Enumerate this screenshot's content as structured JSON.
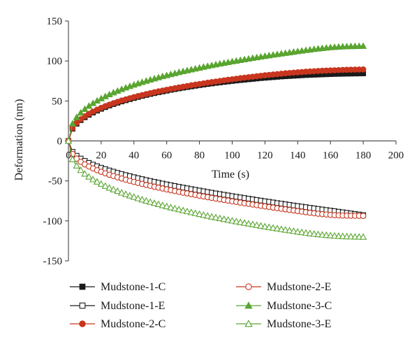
{
  "chart_data": {
    "type": "line",
    "xlabel": "Time (s)",
    "ylabel": "Deformation (nm)",
    "xlim": [
      0,
      200
    ],
    "ylim": [
      -150,
      150
    ],
    "x_ticks": [
      "0",
      "20",
      "40",
      "60",
      "80",
      "100",
      "120",
      "140",
      "160",
      "180",
      "200"
    ],
    "y_ticks": [
      "150",
      "100",
      "50",
      "0",
      "-50",
      "-100",
      "-150"
    ],
    "x_tick_values": [
      0,
      20,
      40,
      60,
      80,
      100,
      120,
      140,
      160,
      180,
      200
    ],
    "y_tick_values": [
      150,
      100,
      50,
      0,
      -50,
      -100,
      -150
    ],
    "x_axis_position": "y=0",
    "grid": false,
    "legend_position": "bottom",
    "x": [
      0,
      2.5,
      5,
      7.5,
      10,
      12.5,
      15,
      17.5,
      20,
      22.5,
      25,
      27.5,
      30,
      32.5,
      35,
      37.5,
      40,
      42.5,
      45,
      47.5,
      50,
      52.5,
      55,
      57.5,
      60,
      62.5,
      65,
      67.5,
      70,
      72.5,
      75,
      77.5,
      80,
      82.5,
      85,
      87.5,
      90,
      92.5,
      95,
      97.5,
      100,
      102.5,
      105,
      107.5,
      110,
      112.5,
      115,
      117.5,
      120,
      122.5,
      125,
      127.5,
      130,
      132.5,
      135,
      137.5,
      140,
      142.5,
      145,
      147.5,
      150,
      152.5,
      155,
      157.5,
      160,
      162.5,
      165,
      167.5,
      170,
      172.5,
      175,
      177.5,
      180
    ],
    "series": [
      {
        "name": "Mudstone-1-C",
        "color": "#1a1a1a",
        "marker": "square",
        "filled": true,
        "values": [
          0,
          15.2,
          21.4,
          25.9,
          29.5,
          32.6,
          35.4,
          37.8,
          40.1,
          42.2,
          44.2,
          46.0,
          47.7,
          49.3,
          50.8,
          52.2,
          53.6,
          54.9,
          56.2,
          57.4,
          58.6,
          59.7,
          60.8,
          61.8,
          62.8,
          63.8,
          64.7,
          65.6,
          66.5,
          67.3,
          68.1,
          68.9,
          69.7,
          70.4,
          71.1,
          71.8,
          72.5,
          73.1,
          73.7,
          74.3,
          74.9,
          75.5,
          76.0,
          76.5,
          77.0,
          77.5,
          78.0,
          78.5,
          78.9,
          79.3,
          79.7,
          80.1,
          80.5,
          80.8,
          81.1,
          81.4,
          81.7,
          82.0,
          82.3,
          82.5,
          82.7,
          82.9,
          83.1,
          83.3,
          83.5,
          83.7,
          83.8,
          83.9,
          84.0,
          84.1,
          84.2,
          84.3,
          84.4
        ]
      },
      {
        "name": "Mudstone-1-E",
        "color": "#1a1a1a",
        "marker": "square",
        "filled": false,
        "values": [
          0,
          -13.5,
          -18.5,
          -22.0,
          -24.9,
          -27.4,
          -29.6,
          -31.6,
          -33.5,
          -35.2,
          -36.9,
          -38.4,
          -39.9,
          -41.3,
          -42.7,
          -44.0,
          -45.3,
          -46.5,
          -47.7,
          -48.9,
          -50.0,
          -51.1,
          -52.2,
          -53.3,
          -54.3,
          -55.3,
          -56.3,
          -57.3,
          -58.3,
          -59.2,
          -60.2,
          -61.1,
          -62.0,
          -62.9,
          -63.8,
          -64.7,
          -65.6,
          -66.4,
          -67.3,
          -68.1,
          -69.0,
          -69.8,
          -70.6,
          -71.4,
          -72.2,
          -73.0,
          -73.8,
          -74.6,
          -75.4,
          -76.1,
          -76.9,
          -77.7,
          -78.4,
          -79.2,
          -79.9,
          -80.7,
          -81.4,
          -82.1,
          -82.8,
          -83.6,
          -84.3,
          -85.0,
          -85.7,
          -86.4,
          -87.1,
          -87.8,
          -88.5,
          -89.2,
          -89.9,
          -90.6,
          -91.3,
          -92.0,
          -92.7
        ]
      },
      {
        "name": "Mudstone-2-C",
        "color": "#c8361f",
        "marker": "circle",
        "filled": true,
        "values": [
          0,
          16.0,
          22.5,
          27.1,
          30.8,
          33.9,
          36.7,
          39.1,
          41.4,
          43.5,
          45.4,
          47.2,
          48.9,
          50.5,
          52.0,
          53.4,
          54.8,
          56.1,
          57.3,
          58.6,
          59.7,
          60.9,
          62.0,
          63.0,
          64.0,
          65.0,
          66.0,
          66.9,
          67.8,
          68.7,
          69.6,
          70.4,
          71.2,
          72.0,
          72.8,
          73.6,
          74.3,
          75.0,
          75.8,
          76.5,
          77.1,
          77.8,
          78.5,
          79.1,
          79.7,
          80.3,
          80.9,
          81.5,
          82.1,
          82.6,
          83.1,
          83.6,
          84.1,
          84.6,
          85.0,
          85.4,
          85.8,
          86.2,
          86.6,
          86.9,
          87.2,
          87.5,
          87.8,
          88.0,
          88.2,
          88.4,
          88.6,
          88.8,
          89.0,
          89.1,
          89.2,
          89.3,
          89.4
        ]
      },
      {
        "name": "Mudstone-2-E",
        "color": "#c8361f",
        "marker": "circle",
        "filled": false,
        "values": [
          0,
          -16.3,
          -22.1,
          -26.1,
          -29.3,
          -32.0,
          -34.4,
          -36.6,
          -38.6,
          -40.5,
          -42.3,
          -43.9,
          -45.5,
          -47.0,
          -48.5,
          -49.9,
          -51.2,
          -52.5,
          -53.7,
          -55.0,
          -56.1,
          -57.3,
          -58.4,
          -59.5,
          -60.6,
          -61.6,
          -62.7,
          -63.7,
          -64.7,
          -65.6,
          -66.6,
          -67.5,
          -68.5,
          -69.4,
          -70.3,
          -71.2,
          -72.1,
          -72.9,
          -73.8,
          -74.6,
          -75.5,
          -76.3,
          -77.1,
          -77.9,
          -78.7,
          -79.5,
          -80.3,
          -81.1,
          -81.8,
          -82.6,
          -83.3,
          -84.1,
          -84.8,
          -85.5,
          -86.3,
          -87.0,
          -87.7,
          -88.4,
          -89.1,
          -89.8,
          -90.4,
          -91.0,
          -91.5,
          -92.0,
          -92.4,
          -92.8,
          -93.1,
          -93.3,
          -93.4,
          -93.5,
          -93.5,
          -93.6,
          -93.7
        ]
      },
      {
        "name": "Mudstone-3-C",
        "color": "#5aa531",
        "marker": "triangle",
        "filled": true,
        "values": [
          0,
          21.5,
          29.5,
          35.2,
          39.8,
          43.7,
          47.1,
          50.2,
          53.0,
          55.6,
          58.1,
          60.4,
          62.5,
          64.6,
          66.5,
          68.4,
          70.1,
          71.8,
          73.4,
          75.0,
          76.5,
          77.9,
          79.3,
          80.7,
          82.0,
          83.3,
          84.5,
          85.8,
          87.0,
          88.1,
          89.2,
          90.3,
          91.4,
          92.5,
          93.5,
          94.5,
          95.5,
          96.5,
          97.4,
          98.3,
          99.3,
          100.1,
          101.0,
          101.9,
          102.7,
          103.6,
          104.4,
          105.2,
          106.0,
          106.8,
          107.6,
          108.3,
          109.1,
          109.8,
          110.5,
          111.3,
          112.0,
          112.7,
          113.4,
          114.0,
          114.7,
          115.3,
          115.9,
          116.4,
          116.9,
          117.3,
          117.6,
          117.9,
          118.1,
          118.3,
          118.4,
          118.5,
          118.6
        ]
      },
      {
        "name": "Mudstone-3-E",
        "color": "#5aa531",
        "marker": "triangle",
        "filled": false,
        "values": [
          0,
          -23.0,
          -31.0,
          -36.6,
          -41.1,
          -44.9,
          -48.2,
          -51.1,
          -53.8,
          -56.3,
          -58.6,
          -60.8,
          -62.8,
          -64.8,
          -66.6,
          -68.4,
          -70.1,
          -71.8,
          -73.4,
          -74.9,
          -76.4,
          -77.8,
          -79.2,
          -80.6,
          -81.9,
          -83.2,
          -84.5,
          -85.7,
          -86.9,
          -88.1,
          -89.3,
          -90.4,
          -91.5,
          -92.6,
          -93.7,
          -94.8,
          -95.8,
          -96.8,
          -97.8,
          -98.8,
          -99.8,
          -100.7,
          -101.7,
          -102.6,
          -103.5,
          -104.4,
          -105.3,
          -106.2,
          -107.1,
          -107.9,
          -108.8,
          -109.6,
          -110.4,
          -111.2,
          -112.0,
          -112.8,
          -113.6,
          -114.3,
          -115.0,
          -115.7,
          -116.3,
          -116.9,
          -117.4,
          -117.9,
          -118.3,
          -118.7,
          -119.0,
          -119.3,
          -119.5,
          -119.7,
          -119.9,
          -120.0,
          -120.1
        ]
      }
    ]
  }
}
